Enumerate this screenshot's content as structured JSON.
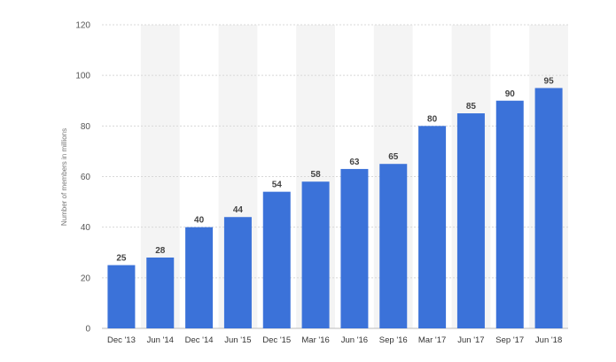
{
  "chart_data": {
    "type": "bar",
    "categories": [
      "Dec '13",
      "Jun '14",
      "Dec '14",
      "Jun '15",
      "Dec '15",
      "Mar '16",
      "Jun '16",
      "Sep '16",
      "Mar '17",
      "Jun '17",
      "Sep '17",
      "Jun '18"
    ],
    "values": [
      25,
      28,
      40,
      44,
      54,
      58,
      63,
      65,
      80,
      85,
      90,
      95
    ],
    "ylabel": "Number of members in millions",
    "ylim": [
      0,
      120
    ],
    "yticks": [
      0,
      20,
      40,
      60,
      80,
      100,
      120
    ],
    "grid": true,
    "alternating_column_shading": true,
    "colors": {
      "bar": "#3b72d9",
      "shade": "#f4f4f4",
      "grid": "#d8d8d8"
    }
  }
}
